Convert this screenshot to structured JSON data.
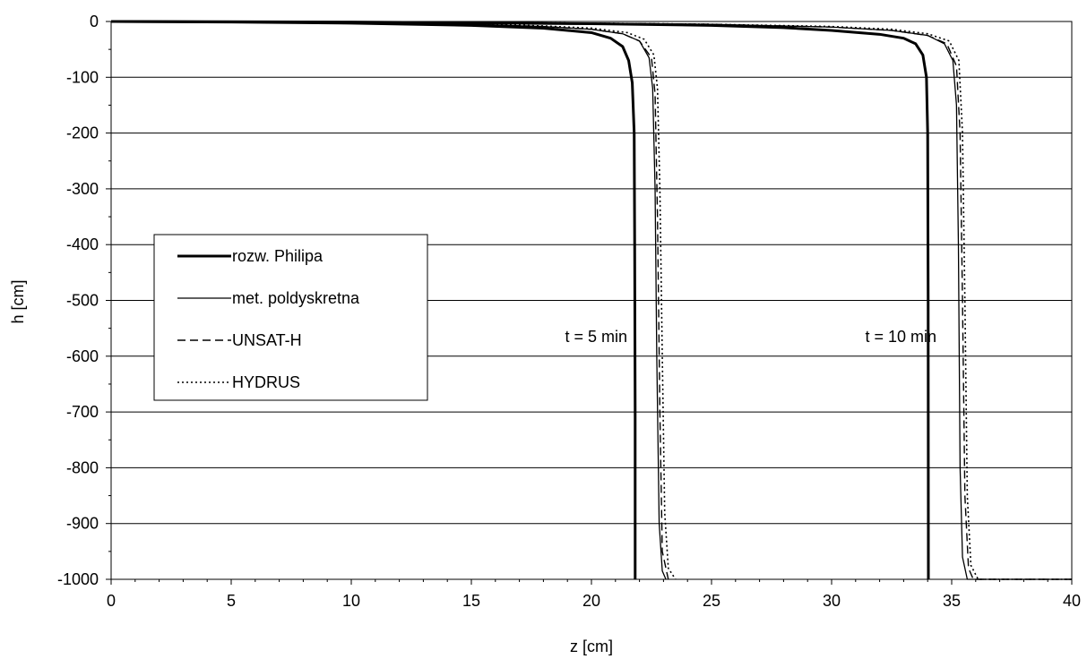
{
  "chart_data": {
    "type": "line",
    "xlabel": "z [cm]",
    "ylabel": "h [cm]",
    "xlim": [
      0,
      40
    ],
    "ylim": [
      -1000,
      0
    ],
    "x_ticks": [
      0,
      5,
      10,
      15,
      20,
      25,
      30,
      35,
      40
    ],
    "y_ticks": [
      0,
      -100,
      -200,
      -300,
      -400,
      -500,
      -600,
      -700,
      -800,
      -900,
      -1000
    ],
    "grid": "horizontal",
    "legend_position": "center-left",
    "annotations": [
      {
        "text": "t = 5 min",
        "x": 18.9,
        "y": -575
      },
      {
        "text": "t = 10 min",
        "x": 31.4,
        "y": -575
      }
    ],
    "series": [
      {
        "name": "rozw. Philipa",
        "style": "thick-solid",
        "curves": [
          [
            [
              0,
              0
            ],
            [
              5,
              -1
            ],
            [
              10,
              -3
            ],
            [
              15,
              -7
            ],
            [
              18,
              -12
            ],
            [
              20,
              -20
            ],
            [
              20.8,
              -30
            ],
            [
              21.3,
              -45
            ],
            [
              21.55,
              -70
            ],
            [
              21.7,
              -110
            ],
            [
              21.78,
              -200
            ],
            [
              21.8,
              -400
            ],
            [
              21.82,
              -700
            ],
            [
              21.82,
              -1000
            ]
          ],
          [
            [
              0,
              0
            ],
            [
              10,
              -1
            ],
            [
              20,
              -4
            ],
            [
              25,
              -7
            ],
            [
              28,
              -11
            ],
            [
              30,
              -16
            ],
            [
              32,
              -23
            ],
            [
              33,
              -30
            ],
            [
              33.5,
              -40
            ],
            [
              33.8,
              -60
            ],
            [
              33.95,
              -100
            ],
            [
              34,
              -200
            ],
            [
              34.02,
              -500
            ],
            [
              34.03,
              -1000
            ]
          ]
        ]
      },
      {
        "name": "met. poldyskretna",
        "style": "thin-solid",
        "curves": [
          [
            [
              0,
              0
            ],
            [
              5,
              -1
            ],
            [
              10,
              -2
            ],
            [
              15,
              -5
            ],
            [
              18,
              -9
            ],
            [
              20,
              -14
            ],
            [
              21.3,
              -22
            ],
            [
              22,
              -35
            ],
            [
              22.4,
              -65
            ],
            [
              22.55,
              -120
            ],
            [
              22.65,
              -300
            ],
            [
              22.72,
              -600
            ],
            [
              22.82,
              -900
            ],
            [
              22.95,
              -985
            ],
            [
              23.1,
              -1000
            ]
          ],
          [
            [
              0,
              0
            ],
            [
              10,
              -1
            ],
            [
              20,
              -3
            ],
            [
              25,
              -5
            ],
            [
              30,
              -10
            ],
            [
              32.5,
              -16
            ],
            [
              34,
              -25
            ],
            [
              34.7,
              -40
            ],
            [
              35.05,
              -70
            ],
            [
              35.2,
              -150
            ],
            [
              35.28,
              -400
            ],
            [
              35.35,
              -800
            ],
            [
              35.45,
              -960
            ],
            [
              35.65,
              -1000
            ],
            [
              40,
              -1000
            ]
          ]
        ]
      },
      {
        "name": "UNSAT-H",
        "style": "dashed",
        "curves": [
          [
            [
              0,
              0
            ],
            [
              5,
              -1
            ],
            [
              10,
              -2
            ],
            [
              15,
              -5
            ],
            [
              18,
              -9
            ],
            [
              20,
              -14
            ],
            [
              21.3,
              -22
            ],
            [
              22,
              -35
            ],
            [
              22.5,
              -65
            ],
            [
              22.65,
              -130
            ],
            [
              22.75,
              -350
            ],
            [
              22.85,
              -700
            ],
            [
              22.95,
              -950
            ],
            [
              23.2,
              -1000
            ]
          ],
          [
            [
              0,
              0
            ],
            [
              10,
              -1
            ],
            [
              20,
              -3
            ],
            [
              25,
              -5
            ],
            [
              30,
              -10
            ],
            [
              32.5,
              -16
            ],
            [
              34,
              -25
            ],
            [
              34.8,
              -40
            ],
            [
              35.2,
              -80
            ],
            [
              35.35,
              -200
            ],
            [
              35.45,
              -500
            ],
            [
              35.55,
              -850
            ],
            [
              35.7,
              -980
            ],
            [
              35.9,
              -1000
            ],
            [
              40,
              -1000
            ]
          ]
        ]
      },
      {
        "name": "HYDRUS",
        "style": "dotted",
        "curves": [
          [
            [
              0,
              0
            ],
            [
              5,
              -1
            ],
            [
              10,
              -2
            ],
            [
              15,
              -4
            ],
            [
              18,
              -8
            ],
            [
              20,
              -12
            ],
            [
              21.5,
              -20
            ],
            [
              22.2,
              -32
            ],
            [
              22.6,
              -60
            ],
            [
              22.75,
              -120
            ],
            [
              22.85,
              -300
            ],
            [
              22.95,
              -600
            ],
            [
              23.05,
              -880
            ],
            [
              23.2,
              -980
            ],
            [
              23.5,
              -1000
            ]
          ],
          [
            [
              0,
              0
            ],
            [
              10,
              -1
            ],
            [
              20,
              -3
            ],
            [
              25,
              -5
            ],
            [
              30,
              -9
            ],
            [
              32.5,
              -14
            ],
            [
              34,
              -22
            ],
            [
              34.9,
              -35
            ],
            [
              35.3,
              -70
            ],
            [
              35.45,
              -200
            ],
            [
              35.55,
              -500
            ],
            [
              35.65,
              -850
            ],
            [
              35.8,
              -975
            ],
            [
              36.1,
              -1000
            ],
            [
              40,
              -1000
            ]
          ]
        ]
      }
    ]
  }
}
